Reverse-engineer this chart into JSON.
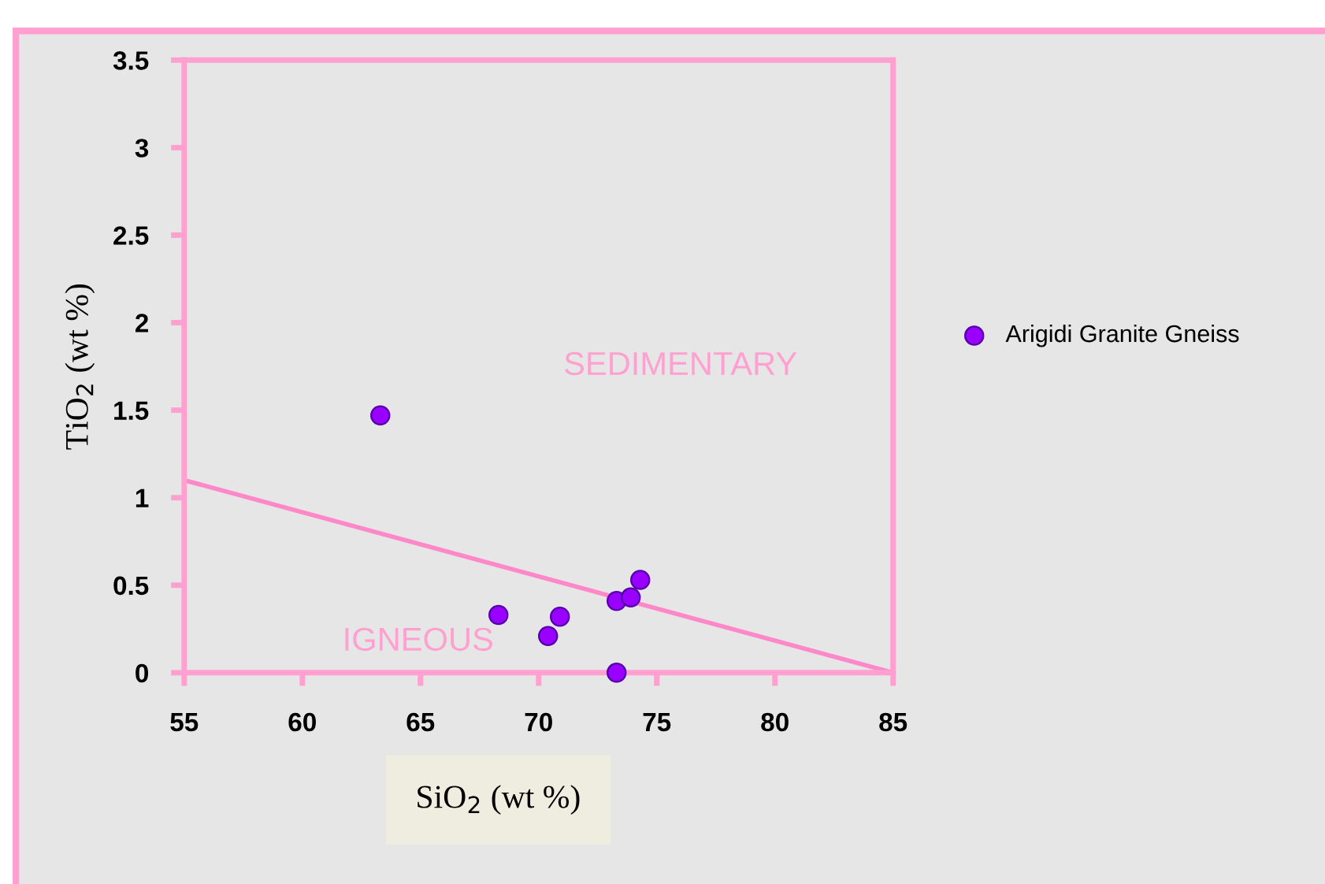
{
  "chart_data": {
    "type": "scatter",
    "xlabel": "SiO$_{2}$ (wt %)",
    "ylabel": "TiO$_{2}$ (wt %)",
    "xlim": [
      55,
      85
    ],
    "xticks": [
      55,
      60,
      65,
      70,
      75,
      80,
      85
    ],
    "ylim": [
      0,
      3.5
    ],
    "yticks": [
      0,
      0.5,
      1,
      1.5,
      2,
      2.5,
      3,
      3.5
    ],
    "grid": false,
    "legend": "right",
    "series": [
      {
        "name": "Arigidi Granite Gneiss",
        "color": "#9900ff",
        "marker": "circle",
        "x": [
          63.3,
          68.3,
          70.9,
          70.4,
          73.3,
          73.9,
          74.3,
          73.3
        ],
        "values": [
          1.47,
          0.33,
          0.32,
          0.21,
          0.41,
          0.43,
          0.53,
          0
        ]
      },
      {
        "type": "line",
        "color": "#ff88c8",
        "marker": "none",
        "x": [
          55,
          85
        ],
        "values": [
          1.1,
          0
        ],
        "line_style": "solid"
      }
    ],
    "annotations": [
      "SEDIMENTARY",
      "IGNEOUS"
    ]
  }
}
